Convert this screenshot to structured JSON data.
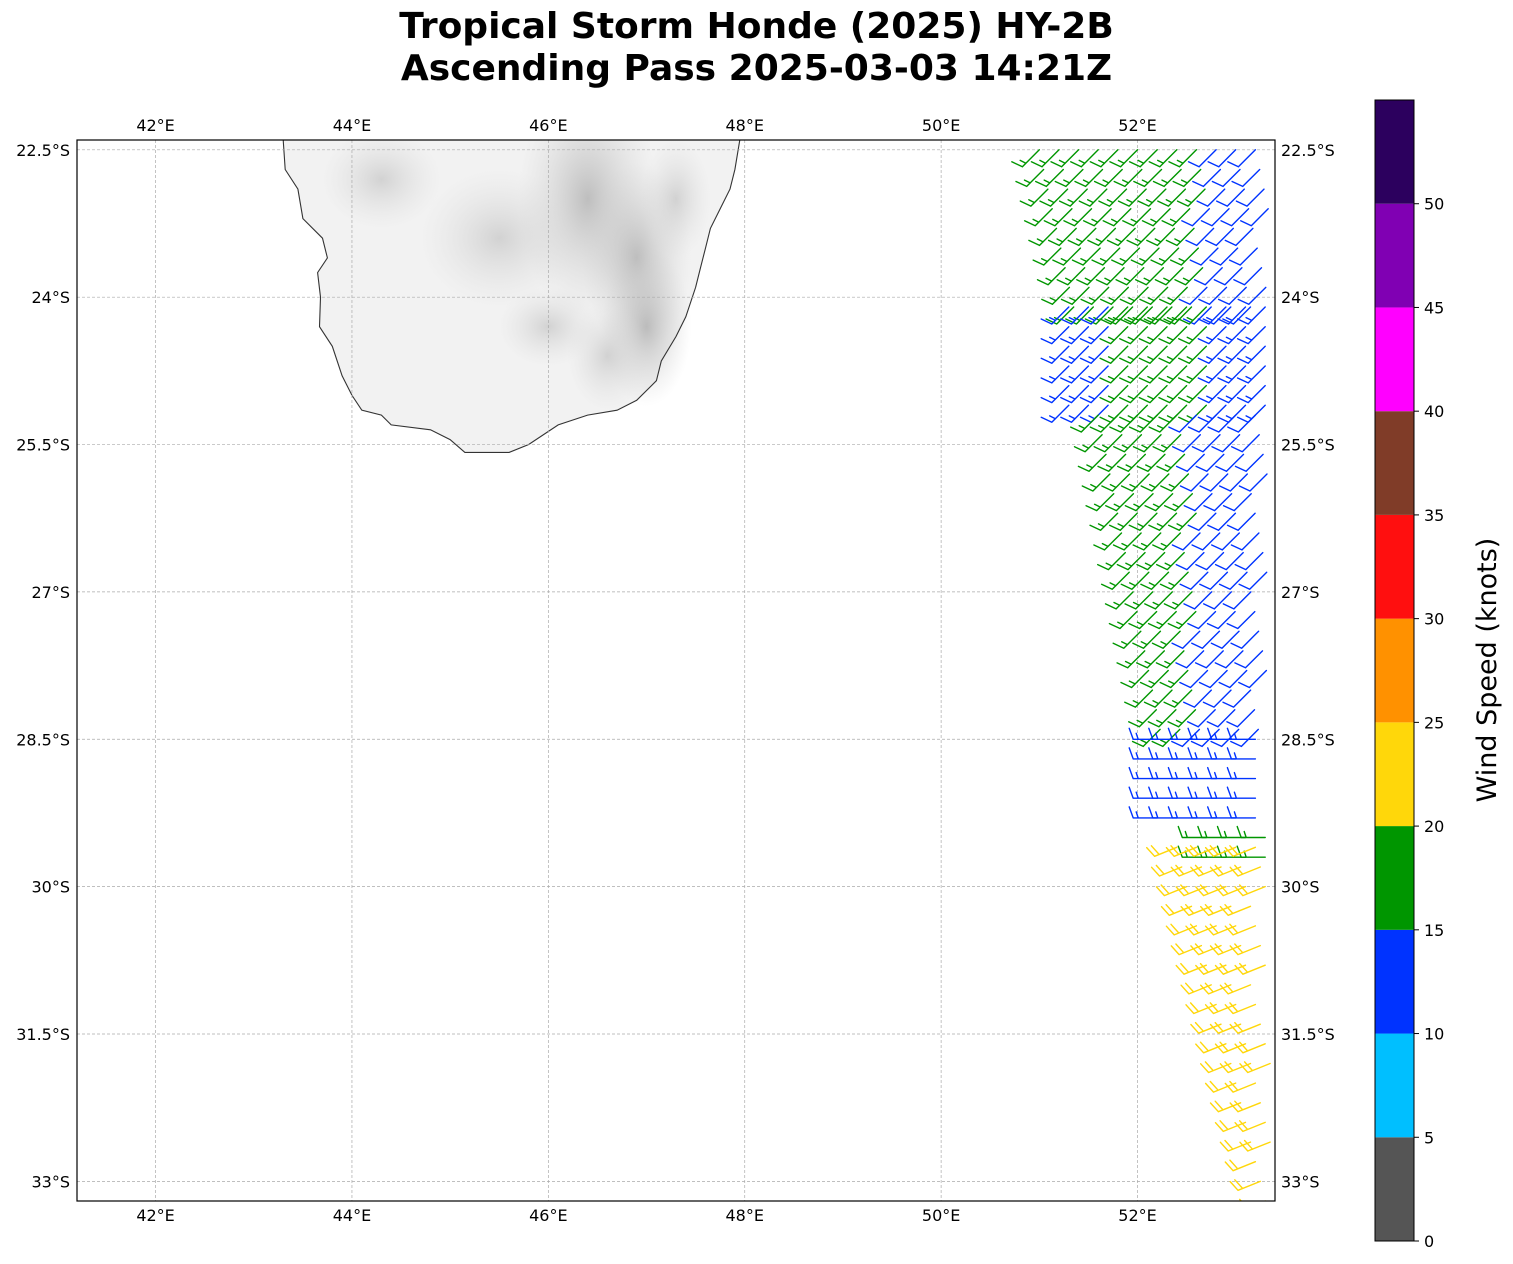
{
  "title": {
    "line1": "Tropical Storm Honde (2025) HY-2B",
    "line2": "Ascending Pass 2025-03-03 14:21Z"
  },
  "map": {
    "lon_ticks": [
      {
        "value": 42,
        "label": "42°E"
      },
      {
        "value": 44,
        "label": "44°E"
      },
      {
        "value": 46,
        "label": "46°E"
      },
      {
        "value": 48,
        "label": "48°E"
      },
      {
        "value": 50,
        "label": "50°E"
      },
      {
        "value": 52,
        "label": "52°E"
      }
    ],
    "lat_ticks": [
      {
        "value": -22.5,
        "label": "22.5°S"
      },
      {
        "value": -24,
        "label": "24°S"
      },
      {
        "value": -25.5,
        "label": "25.5°S"
      },
      {
        "value": -27,
        "label": "27°S"
      },
      {
        "value": -28.5,
        "label": "28.5°S"
      },
      {
        "value": -30,
        "label": "30°S"
      },
      {
        "value": -31.5,
        "label": "31.5°S"
      },
      {
        "value": -33,
        "label": "33°S"
      }
    ],
    "lon_range": [
      41.2,
      53.4
    ],
    "lat_range": [
      -33.2,
      -22.4
    ],
    "grid": true,
    "landmass": "Madagascar (southern)",
    "coastline": [
      [
        43.3,
        -22.4
      ],
      [
        43.32,
        -22.7
      ],
      [
        43.45,
        -22.9
      ],
      [
        43.5,
        -23.2
      ],
      [
        43.7,
        -23.4
      ],
      [
        43.75,
        -23.6
      ],
      [
        43.65,
        -23.75
      ],
      [
        43.68,
        -24.0
      ],
      [
        43.67,
        -24.3
      ],
      [
        43.8,
        -24.5
      ],
      [
        43.9,
        -24.8
      ],
      [
        44.0,
        -25.0
      ],
      [
        44.1,
        -25.15
      ],
      [
        44.3,
        -25.2
      ],
      [
        44.4,
        -25.3
      ],
      [
        44.8,
        -25.35
      ],
      [
        45.0,
        -25.45
      ],
      [
        45.15,
        -25.58
      ],
      [
        45.6,
        -25.58
      ],
      [
        45.8,
        -25.5
      ],
      [
        46.1,
        -25.3
      ],
      [
        46.4,
        -25.2
      ],
      [
        46.7,
        -25.15
      ],
      [
        46.9,
        -25.05
      ],
      [
        47.05,
        -24.9
      ],
      [
        47.1,
        -24.85
      ],
      [
        47.15,
        -24.65
      ],
      [
        47.3,
        -24.4
      ],
      [
        47.4,
        -24.2
      ],
      [
        47.5,
        -23.9
      ],
      [
        47.55,
        -23.7
      ],
      [
        47.6,
        -23.5
      ],
      [
        47.65,
        -23.3
      ],
      [
        47.75,
        -23.1
      ],
      [
        47.85,
        -22.9
      ],
      [
        47.9,
        -22.7
      ],
      [
        47.95,
        -22.4
      ]
    ]
  },
  "chart_data": {
    "type": "wind_barbs",
    "variable": "Wind Speed (knots)",
    "regions": [
      {
        "lat_range": [
          -22.5,
          -24.1
        ],
        "lon_west": 51.0,
        "lon_east": 53.35,
        "blue_from_lon": 52.7,
        "west_color_kt": 17,
        "east_color_kt": 12,
        "direction": "southwesterly"
      },
      {
        "lat_range": [
          -24.1,
          -25.2
        ],
        "lon_west": 51.3,
        "lon_east": 53.35,
        "blue_bands": [
          [
            51.3,
            51.7
          ],
          [
            52.9,
            53.35
          ]
        ],
        "speed_kt": 16,
        "direction": "southwesterly"
      },
      {
        "lat_range": [
          -25.2,
          -28.5
        ],
        "lon_west": 51.6,
        "lon_east": 53.35,
        "blue_from_lon": 52.6,
        "west_color_kt": 17,
        "east_color_kt": 12,
        "direction": "southwesterly"
      },
      {
        "lat_range": [
          -28.5,
          -29.4
        ],
        "lon_west": 52.2,
        "lon_east": 53.35,
        "speed_kt": 14,
        "direction": "westerly"
      },
      {
        "lat_range": [
          -29.5,
          -29.7
        ],
        "lon_west": 52.7,
        "lon_east": 53.35,
        "speed_kt": 16,
        "direction": "westerly"
      },
      {
        "lat_range": [
          -29.6,
          -33.2
        ],
        "lon_west": 52.4,
        "lon_east": 53.35,
        "speed_kt": 22,
        "direction": "west-southwesterly"
      }
    ]
  },
  "colorbar": {
    "label": "Wind Speed (knots)",
    "ticks": [
      "0",
      "5",
      "10",
      "15",
      "20",
      "25",
      "30",
      "35",
      "40",
      "45",
      "50"
    ],
    "bins": [
      {
        "from": 0,
        "to": 5,
        "color": "#555555"
      },
      {
        "from": 5,
        "to": 10,
        "color": "#00bfff"
      },
      {
        "from": 10,
        "to": 15,
        "color": "#0033ff"
      },
      {
        "from": 15,
        "to": 20,
        "color": "#009600"
      },
      {
        "from": 20,
        "to": 25,
        "color": "#ffd70a"
      },
      {
        "from": 25,
        "to": 30,
        "color": "#ff9100"
      },
      {
        "from": 30,
        "to": 35,
        "color": "#ff0f0f"
      },
      {
        "from": 35,
        "to": 40,
        "color": "#803c28"
      },
      {
        "from": 40,
        "to": 45,
        "color": "#ff00ff"
      },
      {
        "from": 45,
        "to": 50,
        "color": "#8000b3"
      },
      {
        "from": 50,
        "to": 55,
        "color": "#2c005e"
      }
    ]
  }
}
